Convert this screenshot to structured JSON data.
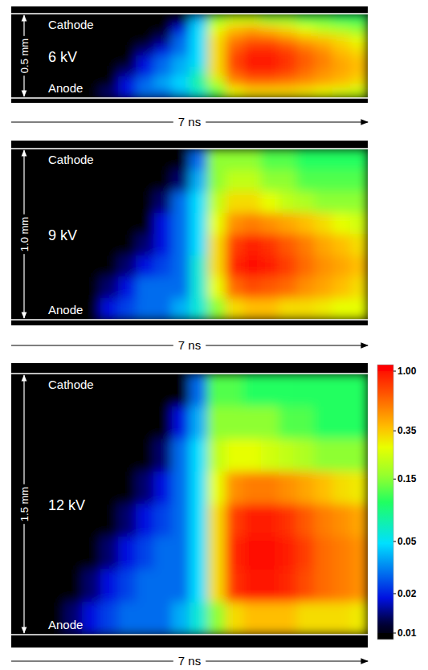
{
  "chart_data": [
    {
      "type": "heatmap",
      "voltage_label": "6 kV",
      "gap_label": "0.5 mm",
      "time_label": "7 ns",
      "cathode_label": "Cathode",
      "anode_label": "Anode",
      "cells": [
        [
          0.01,
          0.01,
          0.01,
          0.01,
          0.01,
          0.01,
          0.01,
          0.01,
          0.01,
          0.01,
          0.04,
          0.15,
          0.2,
          0.2,
          0.15,
          0.15,
          0.12,
          0.12,
          0.1,
          0.1
        ],
        [
          0.01,
          0.01,
          0.01,
          0.01,
          0.01,
          0.01,
          0.01,
          0.01,
          0.01,
          0.02,
          0.05,
          0.25,
          0.35,
          0.4,
          0.35,
          0.3,
          0.25,
          0.2,
          0.18,
          0.15
        ],
        [
          0.01,
          0.01,
          0.01,
          0.01,
          0.01,
          0.01,
          0.01,
          0.01,
          0.015,
          0.03,
          0.05,
          0.3,
          0.5,
          0.6,
          0.6,
          0.5,
          0.4,
          0.35,
          0.3,
          0.25
        ],
        [
          0.01,
          0.01,
          0.01,
          0.01,
          0.01,
          0.01,
          0.01,
          0.015,
          0.02,
          0.03,
          0.05,
          0.3,
          0.6,
          0.8,
          0.8,
          0.7,
          0.55,
          0.45,
          0.35,
          0.3
        ],
        [
          0.01,
          0.01,
          0.01,
          0.01,
          0.01,
          0.01,
          0.01,
          0.02,
          0.03,
          0.04,
          0.05,
          0.3,
          0.7,
          0.9,
          0.9,
          0.75,
          0.6,
          0.5,
          0.4,
          0.35
        ],
        [
          0.01,
          0.01,
          0.01,
          0.01,
          0.01,
          0.01,
          0.015,
          0.02,
          0.03,
          0.04,
          0.06,
          0.3,
          0.6,
          0.8,
          0.8,
          0.7,
          0.55,
          0.45,
          0.4,
          0.35
        ],
        [
          0.01,
          0.01,
          0.01,
          0.01,
          0.01,
          0.01,
          0.02,
          0.03,
          0.04,
          0.05,
          0.08,
          0.2,
          0.45,
          0.55,
          0.55,
          0.5,
          0.45,
          0.4,
          0.35,
          0.3
        ],
        [
          0.01,
          0.01,
          0.01,
          0.01,
          0.01,
          0.015,
          0.02,
          0.03,
          0.03,
          0.04,
          0.06,
          0.12,
          0.25,
          0.3,
          0.3,
          0.3,
          0.28,
          0.25,
          0.22,
          0.2
        ]
      ]
    },
    {
      "type": "heatmap",
      "voltage_label": "9 kV",
      "gap_label": "1.0 mm",
      "time_label": "7 ns",
      "cathode_label": "Cathode",
      "anode_label": "Anode",
      "cells": [
        [
          0.01,
          0.01,
          0.01,
          0.01,
          0.01,
          0.01,
          0.01,
          0.01,
          0.01,
          0.01,
          0.03,
          0.15,
          0.15,
          0.15,
          0.12,
          0.12,
          0.1,
          0.1,
          0.1,
          0.1
        ],
        [
          0.01,
          0.01,
          0.01,
          0.01,
          0.01,
          0.01,
          0.01,
          0.01,
          0.01,
          0.015,
          0.04,
          0.15,
          0.2,
          0.2,
          0.15,
          0.15,
          0.12,
          0.12,
          0.12,
          0.12
        ],
        [
          0.01,
          0.01,
          0.01,
          0.01,
          0.01,
          0.01,
          0.01,
          0.01,
          0.015,
          0.03,
          0.05,
          0.2,
          0.3,
          0.3,
          0.25,
          0.2,
          0.18,
          0.15,
          0.15,
          0.15
        ],
        [
          0.01,
          0.01,
          0.01,
          0.01,
          0.01,
          0.01,
          0.01,
          0.01,
          0.02,
          0.03,
          0.05,
          0.25,
          0.45,
          0.5,
          0.45,
          0.4,
          0.35,
          0.3,
          0.25,
          0.22
        ],
        [
          0.01,
          0.01,
          0.01,
          0.01,
          0.01,
          0.01,
          0.01,
          0.015,
          0.02,
          0.03,
          0.05,
          0.3,
          0.7,
          0.85,
          0.75,
          0.6,
          0.5,
          0.4,
          0.35,
          0.3
        ],
        [
          0.01,
          0.01,
          0.01,
          0.01,
          0.01,
          0.01,
          0.015,
          0.02,
          0.025,
          0.03,
          0.06,
          0.3,
          0.8,
          0.95,
          0.85,
          0.7,
          0.55,
          0.45,
          0.4,
          0.35
        ],
        [
          0.01,
          0.01,
          0.01,
          0.01,
          0.01,
          0.015,
          0.02,
          0.03,
          0.03,
          0.03,
          0.06,
          0.25,
          0.55,
          0.65,
          0.6,
          0.55,
          0.45,
          0.4,
          0.35,
          0.3
        ],
        [
          0.01,
          0.01,
          0.01,
          0.01,
          0.01,
          0.02,
          0.025,
          0.03,
          0.03,
          0.04,
          0.06,
          0.15,
          0.3,
          0.35,
          0.35,
          0.3,
          0.3,
          0.28,
          0.25,
          0.25
        ]
      ]
    },
    {
      "type": "heatmap",
      "voltage_label": "12 kV",
      "gap_label": "1.5 mm",
      "time_label": "7 ns",
      "cathode_label": "Cathode",
      "anode_label": "Anode",
      "cells": [
        [
          0.01,
          0.01,
          0.01,
          0.01,
          0.01,
          0.01,
          0.01,
          0.01,
          0.01,
          0.01,
          0.03,
          0.12,
          0.12,
          0.1,
          0.1,
          0.1,
          0.1,
          0.1,
          0.1,
          0.1
        ],
        [
          0.01,
          0.01,
          0.01,
          0.01,
          0.01,
          0.01,
          0.01,
          0.01,
          0.01,
          0.02,
          0.04,
          0.15,
          0.15,
          0.15,
          0.15,
          0.12,
          0.12,
          0.1,
          0.1,
          0.1
        ],
        [
          0.01,
          0.01,
          0.01,
          0.01,
          0.01,
          0.01,
          0.01,
          0.01,
          0.015,
          0.03,
          0.05,
          0.2,
          0.25,
          0.25,
          0.22,
          0.2,
          0.18,
          0.15,
          0.15,
          0.15
        ],
        [
          0.01,
          0.01,
          0.01,
          0.01,
          0.01,
          0.01,
          0.01,
          0.015,
          0.02,
          0.03,
          0.05,
          0.25,
          0.45,
          0.5,
          0.5,
          0.45,
          0.4,
          0.35,
          0.3,
          0.28
        ],
        [
          0.01,
          0.01,
          0.01,
          0.01,
          0.01,
          0.01,
          0.015,
          0.02,
          0.025,
          0.03,
          0.05,
          0.3,
          0.7,
          0.85,
          0.85,
          0.75,
          0.6,
          0.5,
          0.45,
          0.4
        ],
        [
          0.01,
          0.01,
          0.01,
          0.01,
          0.01,
          0.015,
          0.02,
          0.025,
          0.03,
          0.03,
          0.05,
          0.3,
          0.8,
          0.95,
          0.95,
          0.85,
          0.7,
          0.55,
          0.5,
          0.45
        ],
        [
          0.01,
          0.01,
          0.01,
          0.01,
          0.015,
          0.02,
          0.025,
          0.03,
          0.03,
          0.03,
          0.05,
          0.3,
          0.75,
          0.9,
          0.9,
          0.8,
          0.65,
          0.55,
          0.5,
          0.45
        ],
        [
          0.01,
          0.01,
          0.01,
          0.015,
          0.02,
          0.025,
          0.03,
          0.03,
          0.03,
          0.04,
          0.06,
          0.15,
          0.3,
          0.35,
          0.35,
          0.35,
          0.3,
          0.3,
          0.3,
          0.28
        ]
      ],
      "colorbar": {
        "range": [
          0.01,
          1
        ],
        "log": true,
        "ticks": [
          {
            "value": 1,
            "label": "1.00"
          },
          0.35,
          0.15,
          0.05,
          0.02,
          0.01
        ]
      }
    }
  ]
}
